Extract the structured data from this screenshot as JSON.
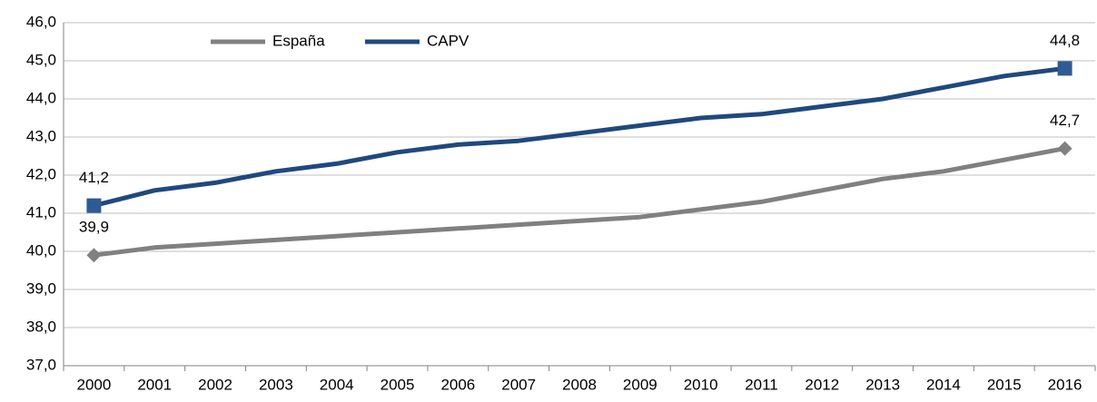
{
  "chart_data": {
    "type": "line",
    "categories": [
      "2000",
      "2001",
      "2002",
      "2003",
      "2004",
      "2005",
      "2006",
      "2007",
      "2008",
      "2009",
      "2010",
      "2011",
      "2012",
      "2013",
      "2014",
      "2015",
      "2016"
    ],
    "series": [
      {
        "name": "España",
        "color": "#808080",
        "marker": "diamond",
        "values": [
          39.9,
          40.1,
          40.2,
          40.3,
          40.4,
          40.5,
          40.6,
          40.7,
          40.8,
          40.9,
          41.1,
          41.3,
          41.6,
          41.9,
          42.1,
          42.4,
          42.7
        ],
        "value_labels": [
          "39,9",
          null,
          null,
          null,
          null,
          null,
          null,
          null,
          null,
          null,
          null,
          null,
          null,
          null,
          null,
          null,
          "42,7"
        ]
      },
      {
        "name": "CAPV",
        "color": "#1f497d",
        "marker": "square",
        "values": [
          41.2,
          41.6,
          41.8,
          42.1,
          42.3,
          42.6,
          42.8,
          42.9,
          43.1,
          43.3,
          43.5,
          43.6,
          43.8,
          44.0,
          44.3,
          44.6,
          44.8
        ],
        "value_labels": [
          "41,2",
          null,
          null,
          null,
          null,
          null,
          null,
          null,
          null,
          null,
          null,
          null,
          null,
          null,
          null,
          null,
          "44,8"
        ]
      }
    ],
    "ylim": [
      37,
      46
    ],
    "yticks": [
      {
        "value": 37,
        "label": "37,0"
      },
      {
        "value": 38,
        "label": "38,0"
      },
      {
        "value": 39,
        "label": "39,0"
      },
      {
        "value": 40,
        "label": "40,0"
      },
      {
        "value": 41,
        "label": "41,0"
      },
      {
        "value": 42,
        "label": "42,0"
      },
      {
        "value": 43,
        "label": "43,0"
      },
      {
        "value": 44,
        "label": "44,0"
      },
      {
        "value": 45,
        "label": "45,0"
      },
      {
        "value": 46,
        "label": "46,0"
      }
    ],
    "grid": true,
    "legend": "top"
  }
}
